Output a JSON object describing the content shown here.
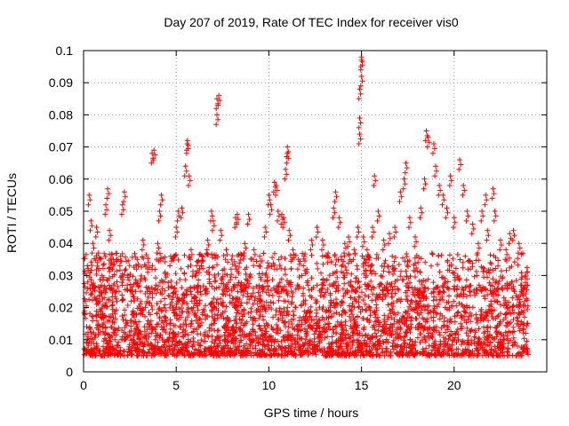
{
  "chart_data": {
    "type": "scatter",
    "title": "Day 207 of 2019, Rate Of TEC Index for receiver vis0",
    "xlabel": "GPS time / hours",
    "ylabel": "ROTI / TECUs",
    "xlim": [
      0,
      25
    ],
    "ylim": [
      0,
      0.1
    ],
    "xticks": [
      0,
      5,
      10,
      15,
      20,
      25
    ],
    "xtick_labels": [
      "0",
      "5",
      "10",
      "15",
      "20",
      ""
    ],
    "yticks": [
      0,
      0.01,
      0.02,
      0.03,
      0.04,
      0.05,
      0.06,
      0.07,
      0.08,
      0.09,
      0.1
    ],
    "ytick_labels": [
      "0",
      "0.01",
      "0.02",
      "0.03",
      "0.04",
      "0.05",
      "0.06",
      "0.07",
      "0.08",
      "0.09",
      "0.1"
    ],
    "grid": true,
    "marker": "plus",
    "color": "#ff0000",
    "series": [
      {
        "name": "ROTI vis0",
        "x_range": [
          0,
          24
        ],
        "baseline_band": [
          0.005,
          0.025
        ],
        "points": [
          [
            0.1,
            0.022
          ],
          [
            0.2,
            0.033
          ],
          [
            0.3,
            0.055
          ],
          [
            0.4,
            0.047
          ],
          [
            0.5,
            0.04
          ],
          [
            0.7,
            0.045
          ],
          [
            0.8,
            0.037
          ],
          [
            1.0,
            0.03
          ],
          [
            1.2,
            0.052
          ],
          [
            1.3,
            0.057
          ],
          [
            1.4,
            0.044
          ],
          [
            1.6,
            0.035
          ],
          [
            1.8,
            0.028
          ],
          [
            2.0,
            0.036
          ],
          [
            2.1,
            0.052
          ],
          [
            2.2,
            0.056
          ],
          [
            2.4,
            0.03
          ],
          [
            2.6,
            0.025
          ],
          [
            2.9,
            0.035
          ],
          [
            3.2,
            0.041
          ],
          [
            3.5,
            0.034
          ],
          [
            3.7,
            0.068
          ],
          [
            3.8,
            0.069
          ],
          [
            4.0,
            0.04
          ],
          [
            4.1,
            0.05
          ],
          [
            4.2,
            0.055
          ],
          [
            4.4,
            0.031
          ],
          [
            4.7,
            0.036
          ],
          [
            5.0,
            0.045
          ],
          [
            5.1,
            0.05
          ],
          [
            5.3,
            0.051
          ],
          [
            5.5,
            0.064
          ],
          [
            5.6,
            0.071
          ],
          [
            5.6,
            0.072
          ],
          [
            5.7,
            0.061
          ],
          [
            5.8,
            0.038
          ],
          [
            6.1,
            0.033
          ],
          [
            6.4,
            0.036
          ],
          [
            6.7,
            0.041
          ],
          [
            6.9,
            0.05
          ],
          [
            7.0,
            0.047
          ],
          [
            7.2,
            0.08
          ],
          [
            7.2,
            0.085
          ],
          [
            7.3,
            0.086
          ],
          [
            7.4,
            0.044
          ],
          [
            7.7,
            0.038
          ],
          [
            8.0,
            0.035
          ],
          [
            8.2,
            0.048
          ],
          [
            8.3,
            0.049
          ],
          [
            8.7,
            0.04
          ],
          [
            8.9,
            0.049
          ],
          [
            9.2,
            0.038
          ],
          [
            9.5,
            0.036
          ],
          [
            9.8,
            0.045
          ],
          [
            10.0,
            0.055
          ],
          [
            10.1,
            0.052
          ],
          [
            10.3,
            0.059
          ],
          [
            10.4,
            0.058
          ],
          [
            10.5,
            0.05
          ],
          [
            10.7,
            0.049
          ],
          [
            10.8,
            0.048
          ],
          [
            10.9,
            0.063
          ],
          [
            11.0,
            0.068
          ],
          [
            11.0,
            0.07
          ],
          [
            11.1,
            0.044
          ],
          [
            11.3,
            0.038
          ],
          [
            11.6,
            0.035
          ],
          [
            11.9,
            0.036
          ],
          [
            12.3,
            0.041
          ],
          [
            12.6,
            0.045
          ],
          [
            12.9,
            0.041
          ],
          [
            13.2,
            0.037
          ],
          [
            13.5,
            0.051
          ],
          [
            13.6,
            0.056
          ],
          [
            13.8,
            0.048
          ],
          [
            14.1,
            0.04
          ],
          [
            14.3,
            0.042
          ],
          [
            14.6,
            0.038
          ],
          [
            14.8,
            0.045
          ],
          [
            14.9,
            0.074
          ],
          [
            14.9,
            0.079
          ],
          [
            14.9,
            0.088
          ],
          [
            15.0,
            0.092
          ],
          [
            15.0,
            0.097
          ],
          [
            15.0,
            0.098
          ],
          [
            15.1,
            0.042
          ],
          [
            15.3,
            0.038
          ],
          [
            15.6,
            0.045
          ],
          [
            15.7,
            0.061
          ],
          [
            15.9,
            0.05
          ],
          [
            16.2,
            0.041
          ],
          [
            16.5,
            0.043
          ],
          [
            16.8,
            0.045
          ],
          [
            17.1,
            0.056
          ],
          [
            17.3,
            0.06
          ],
          [
            17.4,
            0.065
          ],
          [
            17.6,
            0.048
          ],
          [
            17.9,
            0.042
          ],
          [
            18.2,
            0.051
          ],
          [
            18.4,
            0.06
          ],
          [
            18.5,
            0.075
          ],
          [
            18.6,
            0.073
          ],
          [
            18.9,
            0.071
          ],
          [
            19.0,
            0.064
          ],
          [
            19.2,
            0.058
          ],
          [
            19.4,
            0.055
          ],
          [
            19.6,
            0.051
          ],
          [
            19.8,
            0.061
          ],
          [
            20.0,
            0.048
          ],
          [
            20.3,
            0.066
          ],
          [
            20.5,
            0.058
          ],
          [
            20.7,
            0.05
          ],
          [
            21.0,
            0.046
          ],
          [
            21.3,
            0.04
          ],
          [
            21.5,
            0.05
          ],
          [
            21.7,
            0.055
          ],
          [
            21.8,
            0.044
          ],
          [
            22.1,
            0.057
          ],
          [
            22.2,
            0.05
          ],
          [
            22.5,
            0.041
          ],
          [
            22.8,
            0.038
          ],
          [
            23.0,
            0.043
          ],
          [
            23.2,
            0.044
          ],
          [
            23.5,
            0.04
          ],
          [
            23.6,
            0.027
          ],
          [
            23.8,
            0.022
          ]
        ]
      }
    ]
  }
}
